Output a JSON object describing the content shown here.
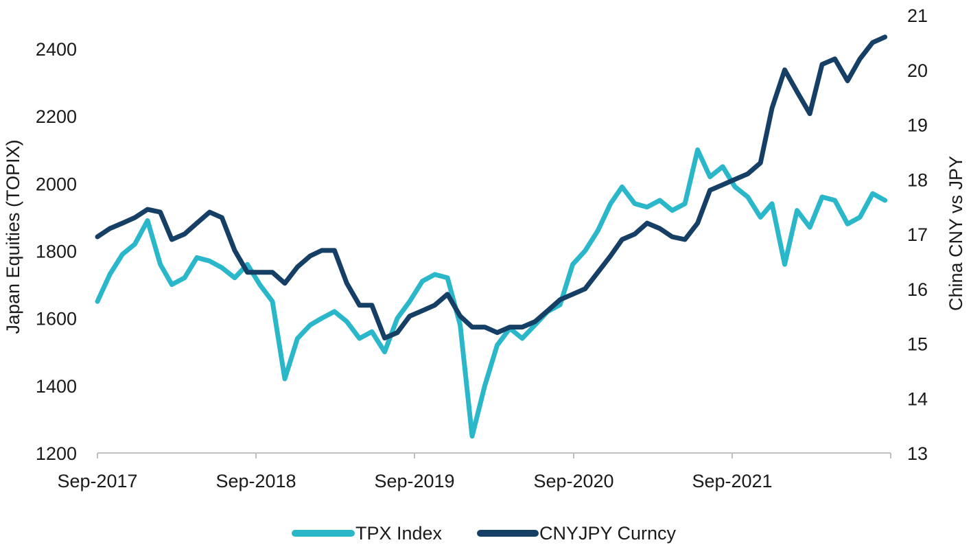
{
  "chart_data": {
    "type": "line",
    "title": "",
    "xlabel": "",
    "ylabel_left": "Japan Equities (TOPIX)",
    "ylabel_right": "China CNY vs JPY",
    "x_tick_labels": [
      "Sep-2017",
      "Sep-2018",
      "Sep-2019",
      "Sep-2020",
      "Sep-2021"
    ],
    "ylim_left": [
      1200,
      2500
    ],
    "yticks_left": [
      1200,
      1400,
      1600,
      1800,
      2000,
      2200,
      2400
    ],
    "ylim_right": [
      13,
      21
    ],
    "yticks_right": [
      13,
      14,
      15,
      16,
      17,
      18,
      19,
      20,
      21
    ],
    "grid": false,
    "legend_position": "bottom",
    "series": [
      {
        "name": "TPX Index",
        "axis": "left",
        "color": "#2ab7ca",
        "x": [
          "2017-09-01",
          "2017-10-01",
          "2017-11-01",
          "2017-12-01",
          "2018-01-01",
          "2018-02-01",
          "2018-03-01",
          "2018-04-01",
          "2018-05-01",
          "2018-06-01",
          "2018-07-01",
          "2018-08-01",
          "2018-09-01",
          "2018-10-01",
          "2018-11-01",
          "2018-12-01",
          "2019-01-01",
          "2019-02-01",
          "2019-03-01",
          "2019-04-01",
          "2019-05-01",
          "2019-06-01",
          "2019-07-01",
          "2019-08-01",
          "2019-09-01",
          "2019-10-01",
          "2019-11-01",
          "2019-12-01",
          "2020-01-01",
          "2020-02-01",
          "2020-03-01",
          "2020-04-01",
          "2020-05-01",
          "2020-06-01",
          "2020-07-01",
          "2020-08-01",
          "2020-09-01",
          "2020-10-01",
          "2020-11-01",
          "2020-12-01",
          "2021-01-01",
          "2021-02-01",
          "2021-03-01",
          "2021-04-01",
          "2021-05-01",
          "2021-06-01",
          "2021-07-01",
          "2021-08-01",
          "2021-09-01",
          "2021-10-01",
          "2021-11-01",
          "2021-12-01",
          "2022-01-01",
          "2022-02-01",
          "2022-03-01",
          "2022-04-01",
          "2022-05-01",
          "2022-06-01",
          "2022-07-01",
          "2022-08-01",
          "2022-09-01",
          "2022-10-01",
          "2022-11-01",
          "2022-12-01"
        ],
        "values": [
          1650,
          1730,
          1790,
          1820,
          1890,
          1760,
          1700,
          1720,
          1780,
          1770,
          1750,
          1720,
          1760,
          1700,
          1650,
          1420,
          1540,
          1580,
          1600,
          1620,
          1590,
          1540,
          1560,
          1500,
          1600,
          1650,
          1710,
          1730,
          1720,
          1580,
          1250,
          1400,
          1520,
          1570,
          1540,
          1580,
          1620,
          1640,
          1760,
          1800,
          1860,
          1940,
          1990,
          1940,
          1930,
          1950,
          1920,
          1940,
          2100,
          2020,
          2050,
          1990,
          1960,
          1900,
          1940,
          1760,
          1920,
          1870,
          1960,
          1950,
          1880,
          1900,
          1970,
          1950
        ]
      },
      {
        "name": "CNYJPY Curncy",
        "axis": "right",
        "color": "#163f66",
        "x": [
          "2017-09-01",
          "2017-10-01",
          "2017-11-01",
          "2017-12-01",
          "2018-01-01",
          "2018-02-01",
          "2018-03-01",
          "2018-04-01",
          "2018-05-01",
          "2018-06-01",
          "2018-07-01",
          "2018-08-01",
          "2018-09-01",
          "2018-10-01",
          "2018-11-01",
          "2018-12-01",
          "2019-01-01",
          "2019-02-01",
          "2019-03-01",
          "2019-04-01",
          "2019-05-01",
          "2019-06-01",
          "2019-07-01",
          "2019-08-01",
          "2019-09-01",
          "2019-10-01",
          "2019-11-01",
          "2019-12-01",
          "2020-01-01",
          "2020-02-01",
          "2020-03-01",
          "2020-04-01",
          "2020-05-01",
          "2020-06-01",
          "2020-07-01",
          "2020-08-01",
          "2020-09-01",
          "2020-10-01",
          "2020-11-01",
          "2020-12-01",
          "2021-01-01",
          "2021-02-01",
          "2021-03-01",
          "2021-04-01",
          "2021-05-01",
          "2021-06-01",
          "2021-07-01",
          "2021-08-01",
          "2021-09-01",
          "2021-10-01",
          "2021-11-01",
          "2021-12-01",
          "2022-01-01",
          "2022-02-01",
          "2022-03-01",
          "2022-04-01",
          "2022-05-01",
          "2022-06-01",
          "2022-07-01",
          "2022-08-01",
          "2022-09-01",
          "2022-10-01",
          "2022-11-01",
          "2022-12-01"
        ],
        "values": [
          16.95,
          17.1,
          17.2,
          17.3,
          17.45,
          17.4,
          16.9,
          17.0,
          17.2,
          17.4,
          17.3,
          16.7,
          16.3,
          16.3,
          16.3,
          16.1,
          16.4,
          16.6,
          16.7,
          16.7,
          16.1,
          15.7,
          15.7,
          15.1,
          15.2,
          15.5,
          15.6,
          15.7,
          15.9,
          15.5,
          15.3,
          15.3,
          15.2,
          15.3,
          15.3,
          15.4,
          15.6,
          15.8,
          15.9,
          16.0,
          16.3,
          16.6,
          16.9,
          17.0,
          17.2,
          17.1,
          16.95,
          16.9,
          17.2,
          17.8,
          17.9,
          18.0,
          18.1,
          18.3,
          19.3,
          20.0,
          19.6,
          19.2,
          20.1,
          20.2,
          19.8,
          20.2,
          20.5,
          20.6
        ]
      }
    ]
  }
}
